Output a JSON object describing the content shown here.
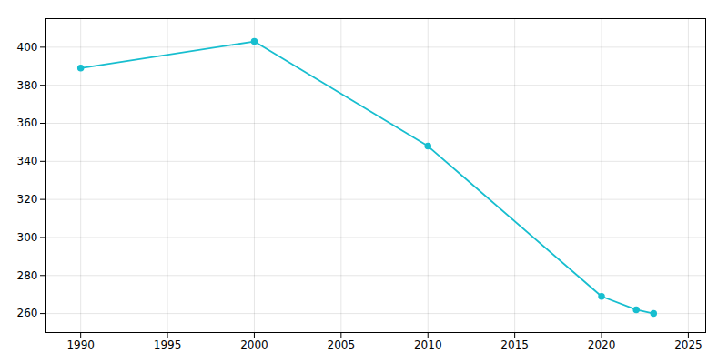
{
  "chart_data": {
    "type": "line",
    "x": [
      1990,
      2000,
      2010,
      2020,
      2022,
      2023
    ],
    "values": [
      389,
      403,
      348,
      269,
      262,
      260
    ],
    "color": "#17becf",
    "marker": "o",
    "xlim": [
      1988,
      2026
    ],
    "xticks": [
      1990,
      1995,
      2000,
      2005,
      2010,
      2015,
      2020,
      2025
    ],
    "ylim": [
      250,
      415
    ],
    "yticks": [
      260,
      280,
      300,
      320,
      340,
      360,
      380,
      400
    ],
    "grid": true
  }
}
